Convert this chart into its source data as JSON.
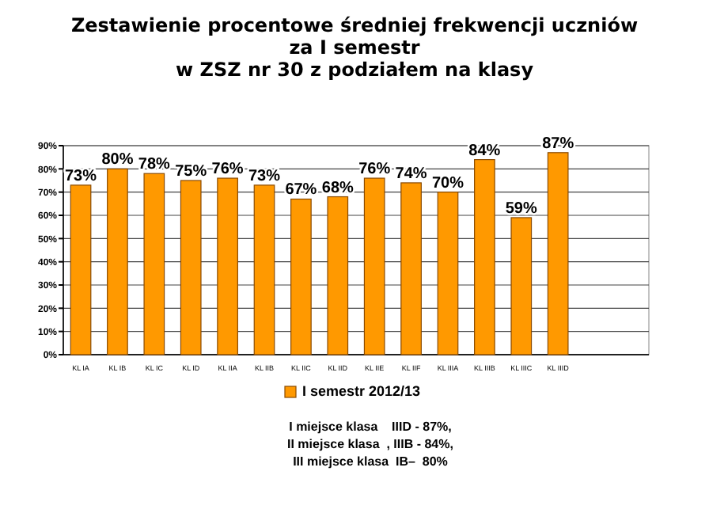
{
  "chart_data": {
    "type": "bar",
    "title": "Zestawienie procentowe średniej frekwencji uczniów\nza I semestr\nw ZSZ nr 30 z podziałem na klasy",
    "categories": [
      "KL IA",
      "KL IB",
      "KL IC",
      "KL ID",
      "KL IIA",
      "KL IIB",
      "KL IIC",
      "KL IID",
      "KL IIE",
      "KL IIF",
      "KL IIIA",
      "KL IIIB",
      "KL IIIC",
      "KL IIID",
      null,
      null
    ],
    "series": [
      {
        "name": "I semestr 2012/13",
        "color": "#ff9900",
        "values": [
          73,
          80,
          78,
          75,
          76,
          73,
          67,
          68,
          76,
          74,
          70,
          84,
          59,
          87,
          null,
          null
        ],
        "value_labels": [
          "73%",
          "80%",
          "78%",
          "75%",
          "76%",
          "73%",
          "67%",
          "68%",
          "76%",
          "74%",
          "70%",
          "84%",
          "59%",
          "87%",
          null,
          null
        ]
      }
    ],
    "ylim": [
      0,
      90
    ],
    "yticks": [
      {
        "value": 0,
        "label": "0%"
      },
      {
        "value": 10,
        "label": "10%"
      },
      {
        "value": 20,
        "label": "20%"
      },
      {
        "value": 30,
        "label": "30%"
      },
      {
        "value": 40,
        "label": "40%"
      },
      {
        "value": 50,
        "label": "50%"
      },
      {
        "value": 60,
        "label": "60%"
      },
      {
        "value": 70,
        "label": "70%"
      },
      {
        "value": 80,
        "label": "80%"
      },
      {
        "value": 90,
        "label": "90%"
      }
    ],
    "grid": "y",
    "legend": "bottom",
    "annotations": [
      "I miejsce klasa    IIID - 87%,",
      "II miejsce klasa  , IIIB - 84%,",
      "III miejsce klasa  IB–  80%"
    ]
  }
}
